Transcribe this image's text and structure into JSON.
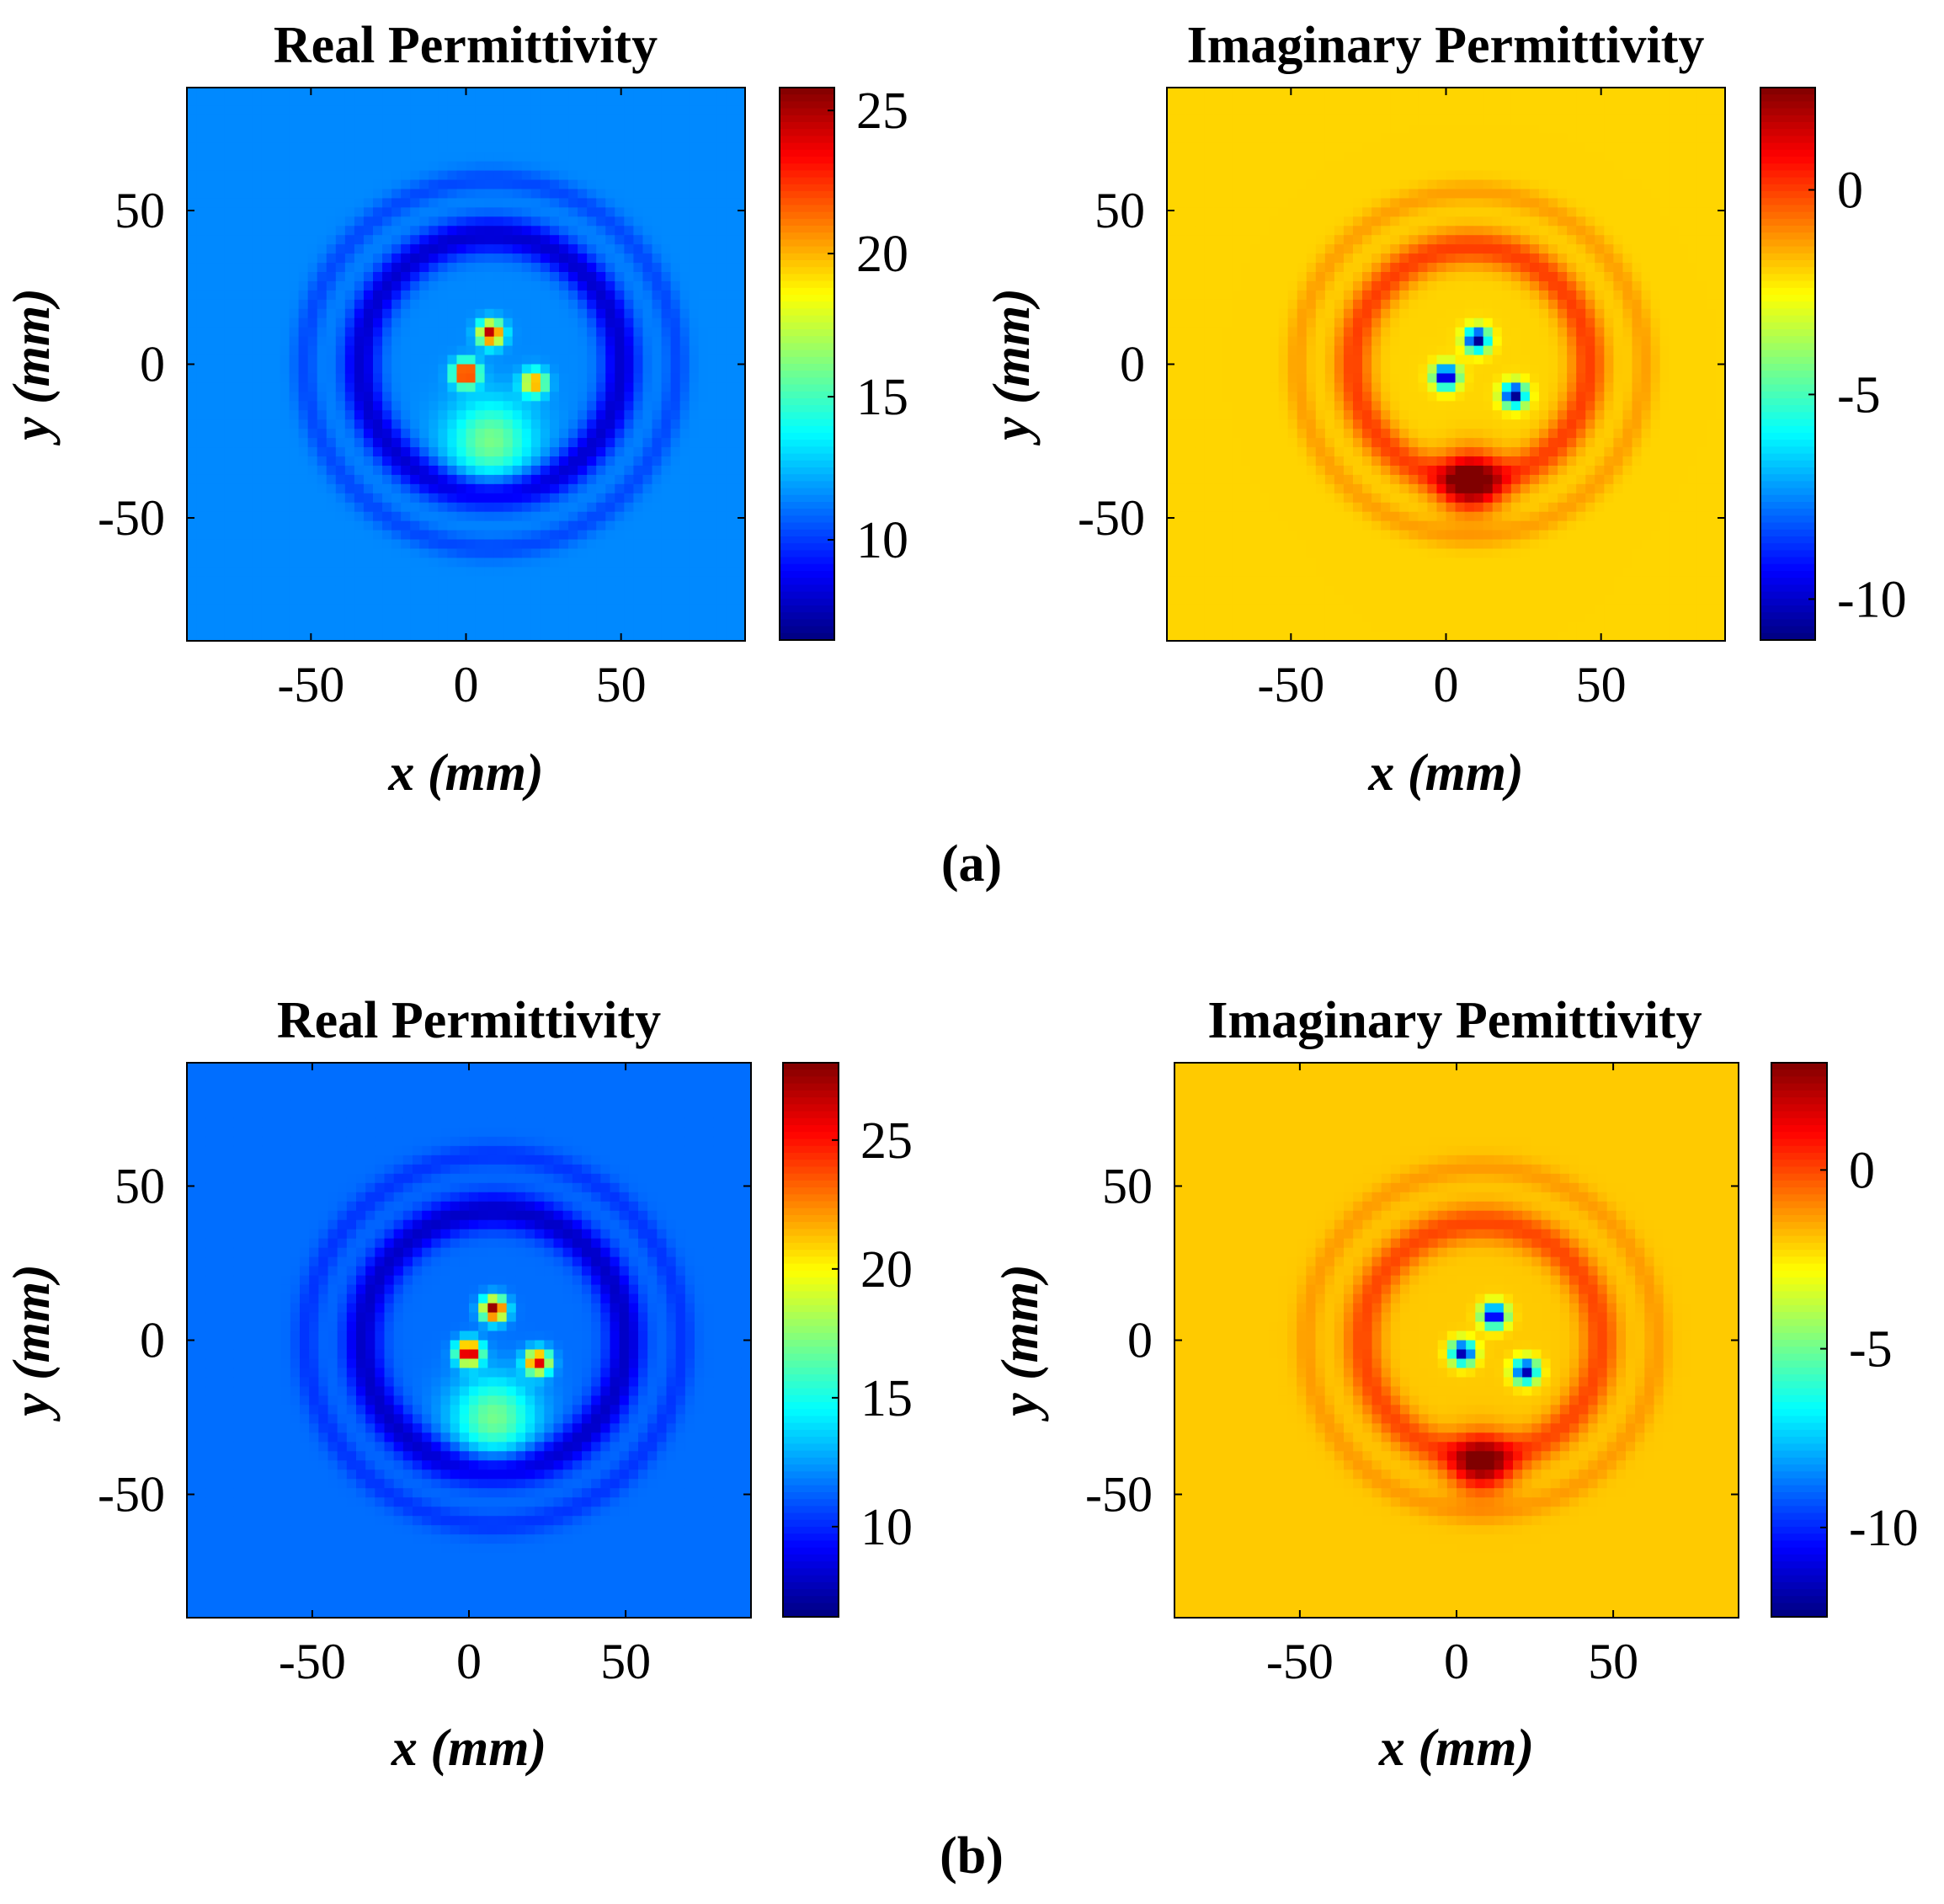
{
  "figure": {
    "panel_labels": [
      "(a)",
      "(b)"
    ]
  },
  "chart_data": [
    {
      "type": "heatmap",
      "panel": "a",
      "title": "Real Permittivity",
      "xlabel": "x (mm)",
      "ylabel": "y (mm)",
      "xlim": [
        -90,
        90
      ],
      "ylim": [
        -90,
        90
      ],
      "xticks": [
        -50,
        0,
        50
      ],
      "yticks": [
        -50,
        0,
        50
      ],
      "colormap": "jet",
      "clim": [
        6.5,
        25.8
      ],
      "colorbar_ticks": [
        10,
        15,
        20,
        25
      ],
      "background_value": 11.5,
      "features": [
        {
          "kind": "inclusion",
          "x": 8,
          "y": 10,
          "r": 4,
          "value": 25
        },
        {
          "kind": "inclusion",
          "x": 0,
          "y": -3,
          "r": 4,
          "value": 25
        },
        {
          "kind": "inclusion",
          "x": 22,
          "y": -6,
          "r": 4,
          "value": 21
        },
        {
          "kind": "region",
          "x": 8,
          "y": -25,
          "r": 14,
          "value": 16
        },
        {
          "kind": "ring",
          "x": 8,
          "y": 0,
          "r": 42,
          "value": 8
        }
      ]
    },
    {
      "type": "heatmap",
      "panel": "a",
      "title": "Imaginary Permittivity",
      "xlabel": "x (mm)",
      "ylabel": "y (mm)",
      "xlim": [
        -90,
        90
      ],
      "ylim": [
        -90,
        90
      ],
      "xticks": [
        -50,
        0,
        50
      ],
      "yticks": [
        -50,
        0,
        50
      ],
      "colormap": "jet",
      "clim": [
        -11,
        2.5
      ],
      "colorbar_ticks": [
        0,
        -5,
        -10
      ],
      "background_value": -2,
      "features": [
        {
          "kind": "inclusion",
          "x": 10,
          "y": 8,
          "r": 4,
          "value": -11
        },
        {
          "kind": "inclusion",
          "x": 0,
          "y": -4,
          "r": 4,
          "value": -11
        },
        {
          "kind": "inclusion",
          "x": 22,
          "y": -10,
          "r": 4,
          "value": -11
        },
        {
          "kind": "region",
          "x": 8,
          "y": -38,
          "r": 10,
          "value": 2
        },
        {
          "kind": "ring",
          "x": 8,
          "y": 0,
          "r": 38,
          "value": 0
        }
      ]
    },
    {
      "type": "heatmap",
      "panel": "b",
      "title": "Real Permittivity",
      "xlabel": "x (mm)",
      "ylabel": "y (mm)",
      "xlim": [
        -90,
        90
      ],
      "ylim": [
        -90,
        90
      ],
      "xticks": [
        -50,
        0,
        50
      ],
      "yticks": [
        -50,
        0,
        50
      ],
      "colormap": "jet",
      "clim": [
        6.5,
        28
      ],
      "colorbar_ticks": [
        10,
        15,
        20,
        25
      ],
      "background_value": 11.5,
      "features": [
        {
          "kind": "inclusion",
          "x": 8,
          "y": 10,
          "r": 4,
          "value": 28
        },
        {
          "kind": "inclusion",
          "x": 0,
          "y": -4,
          "r": 4,
          "value": 28
        },
        {
          "kind": "inclusion",
          "x": 22,
          "y": -7,
          "r": 4,
          "value": 26
        },
        {
          "kind": "region",
          "x": 8,
          "y": -25,
          "r": 14,
          "value": 17
        },
        {
          "kind": "ring",
          "x": 8,
          "y": 0,
          "r": 42,
          "value": 8
        }
      ]
    },
    {
      "type": "heatmap",
      "panel": "b",
      "title": "Imaginary Pemittivity",
      "xlabel": "x (mm)",
      "ylabel": "y (mm)",
      "xlim": [
        -90,
        90
      ],
      "ylim": [
        -90,
        90
      ],
      "xticks": [
        -50,
        0,
        50
      ],
      "yticks": [
        -50,
        0,
        50
      ],
      "colormap": "jet",
      "clim": [
        -12.5,
        3
      ],
      "colorbar_ticks": [
        0,
        -5,
        -10
      ],
      "background_value": -2,
      "features": [
        {
          "kind": "inclusion",
          "x": 12,
          "y": 8,
          "r": 4,
          "value": -12
        },
        {
          "kind": "inclusion",
          "x": 2,
          "y": -4,
          "r": 4,
          "value": -12
        },
        {
          "kind": "inclusion",
          "x": 22,
          "y": -10,
          "r": 4,
          "value": -12
        },
        {
          "kind": "region",
          "x": 8,
          "y": -40,
          "r": 10,
          "value": 2
        },
        {
          "kind": "ring",
          "x": 8,
          "y": 0,
          "r": 38,
          "value": 0
        }
      ]
    }
  ]
}
